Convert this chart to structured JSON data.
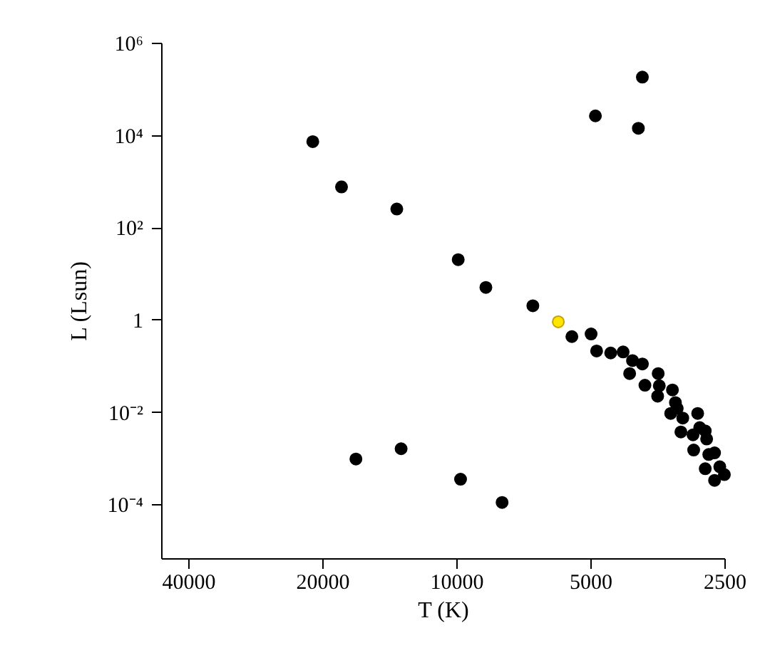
{
  "chart_data": {
    "type": "scatter",
    "xlabel": "T (K)",
    "ylabel": "L (Lsun)",
    "log": "xy",
    "grid": false,
    "legend": false,
    "marker": "circle",
    "xlim": [
      46000,
      2500
    ],
    "xticks": [
      40000,
      20000,
      10000,
      5000,
      2500
    ],
    "ylim": [
      6.8e-06,
      1000000
    ],
    "yticks": [
      {
        "value": 0.0001,
        "label": "10⁻⁴"
      },
      {
        "value": 0.01,
        "label": "10⁻²"
      },
      {
        "value": 1,
        "label": "1"
      },
      {
        "value": 100,
        "label": "10²"
      },
      {
        "value": 10000,
        "label": "10⁴"
      },
      {
        "value": 1000000,
        "label": "10⁶"
      }
    ],
    "series": [
      {
        "color": "#000000",
        "x": [
          21000,
          18100,
          13600,
          9900,
          4870,
          3820,
          3900,
          8580,
          6730,
          5500,
          4980,
          4840,
          4500,
          4220,
          4020,
          3820,
          4080,
          3520,
          3770,
          3500,
          3530,
          3270,
          3220,
          3300,
          3190,
          3100,
          2870,
          3130,
          2940,
          2840,
          2760,
          2740,
          2930,
          2710,
          2630,
          2760,
          2560,
          2500,
          2630,
          16800,
          13300,
          9780,
          7890
        ],
        "values": [
          7200,
          750,
          250,
          20,
          26000,
          180000,
          14000,
          5.0,
          2.0,
          0.43,
          0.49,
          0.21,
          0.19,
          0.2,
          0.13,
          0.11,
          0.068,
          0.068,
          0.038,
          0.037,
          0.022,
          0.03,
          0.016,
          0.0093,
          0.012,
          0.0074,
          0.0093,
          0.0037,
          0.0032,
          0.0046,
          0.0039,
          0.0026,
          0.0015,
          0.0012,
          0.0013,
          0.00059,
          0.00065,
          0.00044,
          0.00033,
          0.00096,
          0.0016,
          0.00035,
          0.00011
        ]
      },
      {
        "color": "#ffe600",
        "x": [
          5900
        ],
        "values": [
          0.9
        ]
      }
    ]
  }
}
